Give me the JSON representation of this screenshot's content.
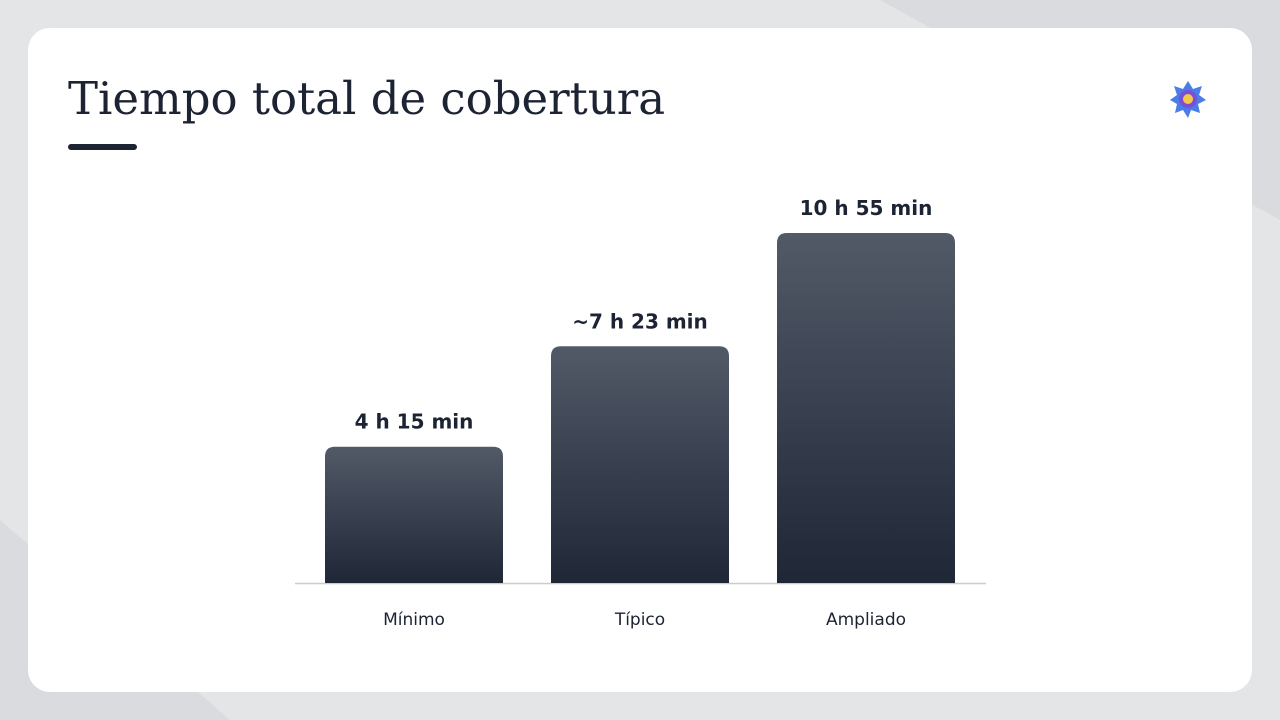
{
  "chart_data": {
    "type": "bar",
    "title": "Tiempo total de cobertura",
    "categories": [
      "Mínimo",
      "Típico",
      "Ampliado"
    ],
    "values": [
      255,
      443,
      655
    ],
    "value_labels": [
      "4 h 15 min",
      "~7 h 23 min",
      "10 h 55 min"
    ],
    "color": "#2a3242"
  }
}
